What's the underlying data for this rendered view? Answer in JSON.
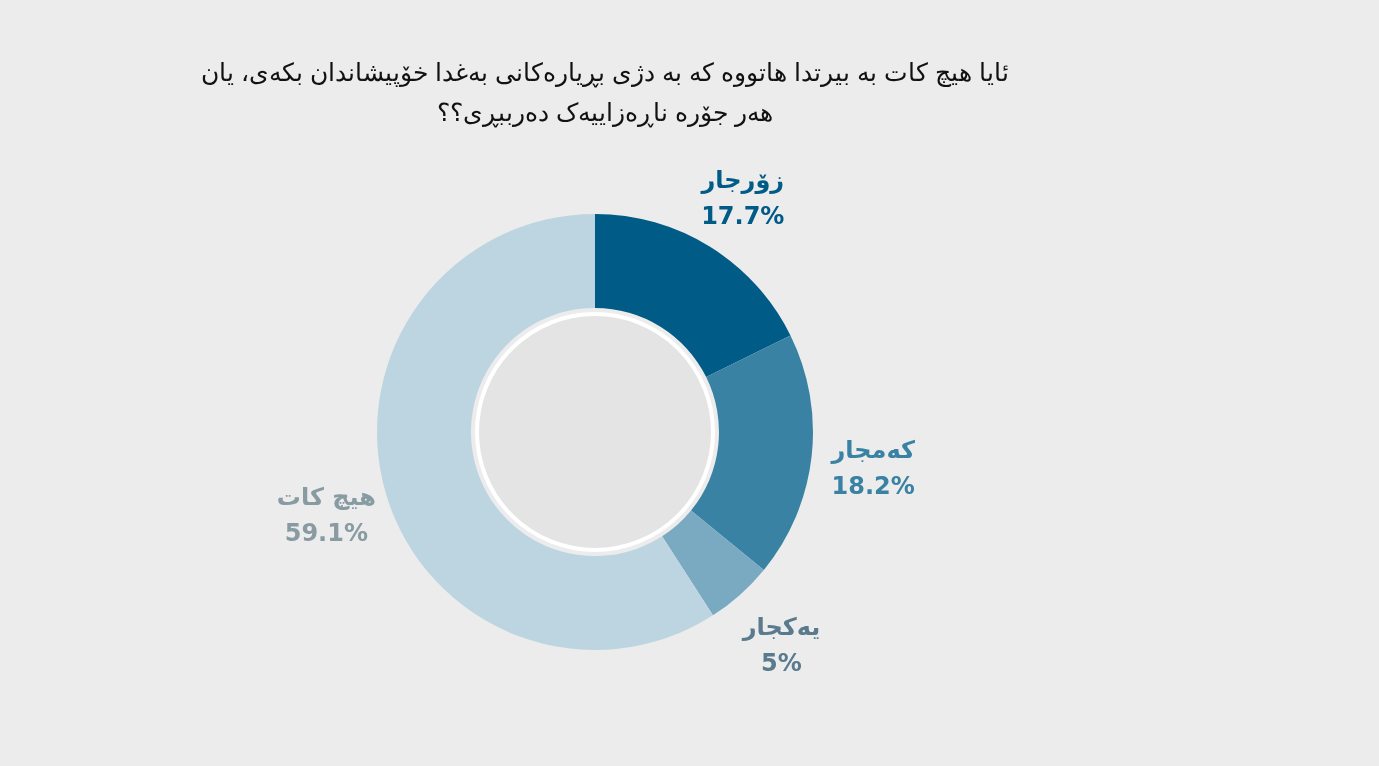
{
  "chart_data": {
    "type": "donut",
    "title": "ئایا هیچ کات بە بیرتدا هاتووە کە بە دژی بڕیارەکانی بەغدا خۆپیشاندان بکەی، یان هەر جۆرە ناڕەزاییەک دەرببڕی؟؟",
    "categories": [
      "زۆرجار",
      "کەمجار",
      "یەکجار",
      "هیچ کات"
    ],
    "values": [
      17.7,
      18.2,
      5,
      59.1
    ],
    "colors": [
      "#005b86",
      "#3a82a3",
      "#7aaac2",
      "#bdd5e0"
    ],
    "value_labels": [
      "17.7%",
      "18.2%",
      "5%",
      "59.1%"
    ],
    "legend": false
  }
}
